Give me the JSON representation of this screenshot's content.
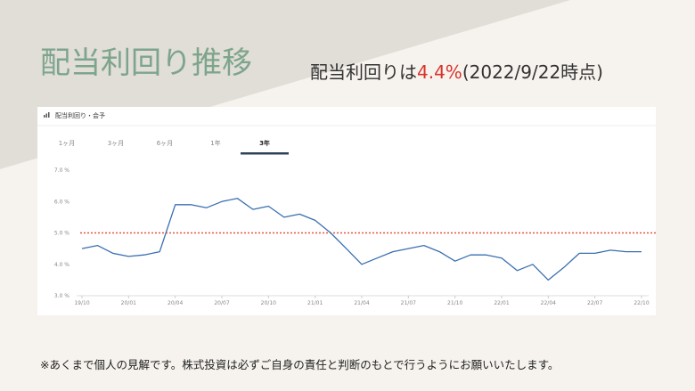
{
  "title": "配当利回り推移",
  "subtitle": {
    "prefix": "配当利回りは",
    "highlight": "4.4%",
    "suffix": "(2022/9/22時点)"
  },
  "card": {
    "title": "配当利回り・会予",
    "tabs": [
      "1ヶ月",
      "3ヶ月",
      "6ヶ月",
      "1年",
      "3年"
    ],
    "active_tab": 4
  },
  "chart_data": {
    "type": "line",
    "categories": [
      "19/10",
      null,
      null,
      "20/01",
      null,
      null,
      "20/04",
      null,
      null,
      "20/07",
      null,
      null,
      "20/10",
      null,
      null,
      "21/01",
      null,
      null,
      "21/04",
      null,
      null,
      "21/07",
      null,
      null,
      "21/10",
      null,
      null,
      "22/01",
      null,
      null,
      "22/04",
      null,
      null,
      "22/07",
      null,
      null,
      "22/10"
    ],
    "values": [
      4.5,
      4.6,
      4.35,
      4.25,
      4.3,
      4.4,
      5.9,
      5.9,
      5.8,
      6.0,
      6.1,
      5.75,
      5.85,
      5.5,
      5.6,
      5.4,
      5.0,
      4.5,
      4.0,
      4.2,
      4.4,
      4.5,
      4.6,
      4.4,
      4.1,
      4.3,
      4.3,
      4.2,
      3.8,
      4.0,
      3.5,
      3.9,
      4.35,
      4.35,
      4.45,
      4.4,
      4.4
    ],
    "color": "#3a6fb0",
    "ylim": [
      3,
      7
    ],
    "yticks": [
      {
        "value": 3,
        "label": "3.0 %"
      },
      {
        "value": 4,
        "label": "4.0 %"
      },
      {
        "value": 5,
        "label": "5.0 %"
      },
      {
        "value": 6,
        "label": "6.0 %"
      },
      {
        "value": 7,
        "label": "7.0 %"
      }
    ],
    "grid": false,
    "reference_line": {
      "value": 5,
      "color": "#e8553b"
    }
  },
  "footnote": "※あくまで個人の見解です。株式投資は必ずご自身の責任と判断のもとで行うようにお願いいたします。"
}
